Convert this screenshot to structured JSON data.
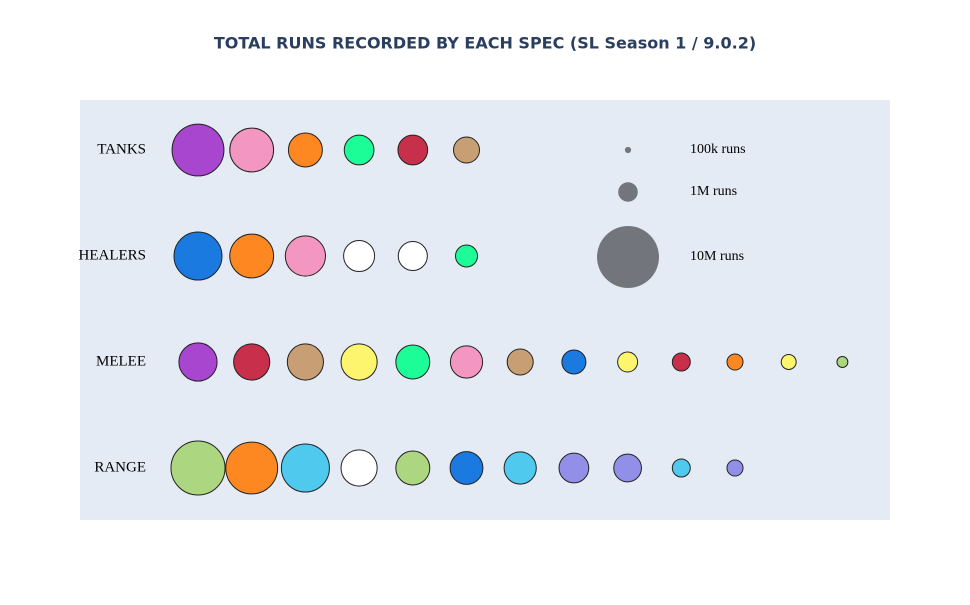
{
  "chart_data": {
    "type": "bubble",
    "title": "TOTAL RUNS RECORDED BY EACH SPEC (SL Season 1 / 9.0.2)",
    "rows": [
      {
        "name": "TANKS",
        "values": [
          7000000,
          5000000,
          3000000,
          2300000,
          2300000,
          1760000
        ],
        "colors": [
          "#a846d0",
          "#f396c2",
          "#fd8822",
          "#1dfd97",
          "#c72f4b",
          "#c89f74"
        ]
      },
      {
        "name": "HEALERS",
        "values": [
          6000000,
          5000000,
          4200000,
          2500000,
          2200000,
          1260000
        ],
        "colors": [
          "#1a7ae0",
          "#fd8822",
          "#f396c2",
          "#ffffff",
          "#ffffff",
          "#1dfd97"
        ]
      },
      {
        "name": "MELEE",
        "values": [
          3800000,
          3400000,
          3400000,
          3400000,
          3000000,
          2700000,
          1760000,
          1500000,
          1040000,
          840000,
          670000,
          580000,
          310000
        ],
        "colors": [
          "#a846d0",
          "#c72f4b",
          "#c89f74",
          "#fdf56d",
          "#1dfd97",
          "#f396c2",
          "#c89f74",
          "#1a7ae0",
          "#fdf56d",
          "#c72f4b",
          "#fd8822",
          "#fdf56d",
          "#acd67f"
        ]
      },
      {
        "name": "RANGE",
        "values": [
          7600000,
          7000000,
          6000000,
          3400000,
          3000000,
          2800000,
          2700000,
          2300000,
          2000000,
          840000,
          670000
        ],
        "colors": [
          "#acd67f",
          "#fd8822",
          "#4fc9ed",
          "#ffffff",
          "#acd67f",
          "#1a7ae0",
          "#4fc9ed",
          "#918fe8",
          "#918fe8",
          "#4fc9ed",
          "#918fe8"
        ]
      }
    ],
    "size_legend": {
      "color": "#72767c",
      "items": [
        {
          "value": 100000,
          "label": "100k runs"
        },
        {
          "value": 1000000,
          "label": "1M runs"
        },
        {
          "value": 10000000,
          "label": "10M runs"
        }
      ]
    }
  }
}
